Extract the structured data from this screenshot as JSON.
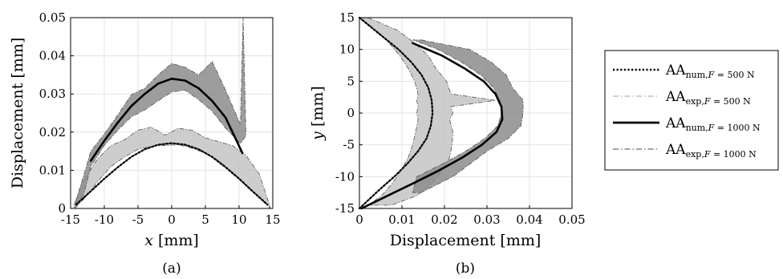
{
  "chart_data": [
    {
      "type": "line",
      "panel_label": "(a)",
      "xlabel_var": "x",
      "xlabel_unit": "[mm]",
      "ylabel": "Displacement [mm]",
      "xlim": [
        -15,
        15
      ],
      "ylim": [
        0,
        0.05
      ],
      "xticks": [
        -15,
        -10,
        -5,
        0,
        5,
        10,
        15
      ],
      "xtick_labels": [
        "-15",
        "-10",
        "-5",
        "0",
        "5",
        "10",
        "15"
      ],
      "yticks": [
        0,
        0.01,
        0.02,
        0.03,
        0.04,
        0.05
      ],
      "ytick_labels": [
        "0",
        "0.01",
        "0.02",
        "0.03",
        "0.04",
        "0.05"
      ],
      "grid": true,
      "series": [
        {
          "name": "AA num, F = 500 N",
          "style": "dotted",
          "color": "#000000",
          "x": [
            -14.2,
            -12,
            -10,
            -8,
            -6,
            -4,
            -2,
            0,
            2,
            4,
            6,
            8,
            10,
            12,
            14.2
          ],
          "y": [
            0.001,
            0.0045,
            0.0078,
            0.0108,
            0.0135,
            0.0155,
            0.0167,
            0.0171,
            0.0167,
            0.0155,
            0.0135,
            0.0108,
            0.0078,
            0.0045,
            0.001
          ]
        },
        {
          "name": "AA exp, F = 500 N",
          "style": "band",
          "color": "#c4c4c4",
          "x": [
            -14.5,
            -13,
            -11,
            -9,
            -7,
            -5,
            -3,
            -1,
            1,
            3,
            5,
            7,
            9,
            11,
            13,
            14.6
          ],
          "y_upper": [
            0.001,
            0.0075,
            0.013,
            0.0165,
            0.018,
            0.0205,
            0.0213,
            0.0192,
            0.021,
            0.0205,
            0.0185,
            0.0175,
            0.0165,
            0.014,
            0.009,
            0.0005
          ],
          "y_lower": [
            0.0,
            0.0025,
            0.007,
            0.011,
            0.0135,
            0.0155,
            0.0163,
            0.0165,
            0.0167,
            0.0158,
            0.0145,
            0.0125,
            0.0095,
            0.006,
            0.003,
            0.0
          ]
        },
        {
          "name": "AA num, F = 1000 N",
          "style": "solid",
          "color": "#000000",
          "x": [
            -12,
            -10,
            -8,
            -6,
            -4,
            -2,
            0,
            2,
            4,
            6,
            8,
            10.5
          ],
          "y": [
            0.0125,
            0.0177,
            0.0225,
            0.0268,
            0.03,
            0.0327,
            0.034,
            0.0335,
            0.0315,
            0.0282,
            0.0238,
            0.0145
          ]
        },
        {
          "name": "AA exp, F = 1000 N",
          "style": "band",
          "color": "#8c8c8c",
          "x": [
            -14.2,
            -13,
            -12,
            -10,
            -8,
            -6,
            -4,
            -2,
            0,
            2,
            4,
            6,
            8,
            10.2,
            10.6,
            11
          ],
          "y_upper": [
            0.002,
            0.009,
            0.015,
            0.0195,
            0.0245,
            0.0298,
            0.0315,
            0.035,
            0.038,
            0.037,
            0.035,
            0.0385,
            0.031,
            0.022,
            0.05,
            0.021
          ],
          "y_lower": [
            0.0,
            0.004,
            0.011,
            0.0165,
            0.0205,
            0.024,
            0.0258,
            0.0282,
            0.0305,
            0.031,
            0.0285,
            0.0255,
            0.021,
            0.017,
            0.018,
            0.019
          ]
        }
      ]
    },
    {
      "type": "line",
      "panel_label": "(b)",
      "xlabel": "Displacement [mm]",
      "ylabel_var": "y",
      "ylabel_unit": "[mm]",
      "xlim": [
        0,
        0.05
      ],
      "ylim": [
        -15,
        15
      ],
      "xticks": [
        0,
        0.01,
        0.02,
        0.03,
        0.04,
        0.05
      ],
      "xtick_labels": [
        "0",
        "0.01",
        "0.02",
        "0.03",
        "0.04",
        "0.05"
      ],
      "yticks": [
        -15,
        -10,
        -5,
        0,
        5,
        10,
        15
      ],
      "ytick_labels": [
        "-15",
        "-10",
        "-5",
        "0",
        "5",
        "10",
        "15"
      ],
      "grid": true,
      "series": [
        {
          "name": "AA num, F = 500 N",
          "style": "dotted",
          "color": "#000000",
          "y": [
            15,
            12,
            10,
            8,
            6,
            4,
            2,
            0,
            -2,
            -4,
            -6,
            -8,
            -10,
            -12,
            -15
          ],
          "x": [
            0.0,
            0.0055,
            0.0092,
            0.0122,
            0.0146,
            0.0162,
            0.017,
            0.0172,
            0.0168,
            0.0158,
            0.0138,
            0.0112,
            0.0082,
            0.0048,
            0.0
          ]
        },
        {
          "name": "AA exp, F = 500 N",
          "style": "band",
          "color": "#c4c4c4",
          "y": [
            15,
            13,
            11,
            9,
            7,
            5,
            3,
            2,
            1,
            0,
            -1,
            -3,
            -5,
            -7,
            -9,
            -11,
            -13,
            -14.5
          ],
          "x_inner": [
            0.0,
            0.004,
            0.007,
            0.0095,
            0.0115,
            0.013,
            0.0138,
            0.0135,
            0.0138,
            0.0135,
            0.0138,
            0.0132,
            0.0125,
            0.0115,
            0.0098,
            0.0078,
            0.0052,
            0.002
          ],
          "x_outer": [
            0.002,
            0.009,
            0.013,
            0.0162,
            0.018,
            0.0205,
            0.0215,
            0.032,
            0.0215,
            0.022,
            0.0212,
            0.022,
            0.0218,
            0.0212,
            0.0195,
            0.0172,
            0.0135,
            0.0075
          ]
        },
        {
          "name": "AA num, F = 1000 N",
          "style": "solid",
          "color": "#000000",
          "y": [
            11,
            9,
            7,
            5,
            3,
            1,
            -1,
            -3,
            -5,
            -7,
            -9,
            -11,
            -15
          ],
          "x": [
            0.0125,
            0.0195,
            0.0248,
            0.0292,
            0.032,
            0.0334,
            0.0336,
            0.0322,
            0.0288,
            0.0242,
            0.0188,
            0.0128,
            0.0005
          ]
        },
        {
          "name": "AA exp, F = 1000 N",
          "style": "band",
          "color": "#8c8c8c",
          "y": [
            11.5,
            10,
            8,
            6,
            4,
            2,
            0,
            -2,
            -4,
            -6,
            -8,
            -10,
            -12.5
          ],
          "x_inner": [
            0.0125,
            0.0185,
            0.024,
            0.0285,
            0.0315,
            0.033,
            0.0335,
            0.0325,
            0.0295,
            0.025,
            0.0195,
            0.0135,
            0.0125
          ],
          "x_outer": [
            0.0145,
            0.026,
            0.031,
            0.0345,
            0.036,
            0.0385,
            0.0385,
            0.038,
            0.035,
            0.03,
            0.026,
            0.022,
            0.0145
          ]
        }
      ]
    }
  ],
  "legend": {
    "placement": "right",
    "entries": [
      {
        "main": "AA",
        "sub1": "num,",
        "sub_var": "F",
        "sub2": " = 500 N",
        "style": "dotted",
        "color": "#000000"
      },
      {
        "main": "AA",
        "sub1": "exp,",
        "sub_var": "F",
        "sub2": " = 500 N",
        "style": "dashdot",
        "color": "#c0c0c0"
      },
      {
        "main": "AA",
        "sub1": "num,",
        "sub_var": "F",
        "sub2": " = 1000 N",
        "style": "solid",
        "color": "#000000"
      },
      {
        "main": "AA",
        "sub1": "exp,",
        "sub_var": "F",
        "sub2": " = 1000 N",
        "style": "dashdot",
        "color": "#808080"
      }
    ]
  }
}
